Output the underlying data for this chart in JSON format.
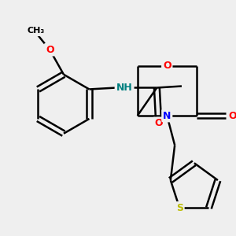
{
  "bg_color": "#efefef",
  "bond_color": "#000000",
  "bond_width": 1.8,
  "atom_colors": {
    "O": "#ff0000",
    "N": "#0000ff",
    "S": "#bbbb00",
    "NH": "#008080",
    "C": "#000000"
  },
  "font_size": 9,
  "fig_size": [
    3.0,
    3.0
  ],
  "dpi": 100
}
